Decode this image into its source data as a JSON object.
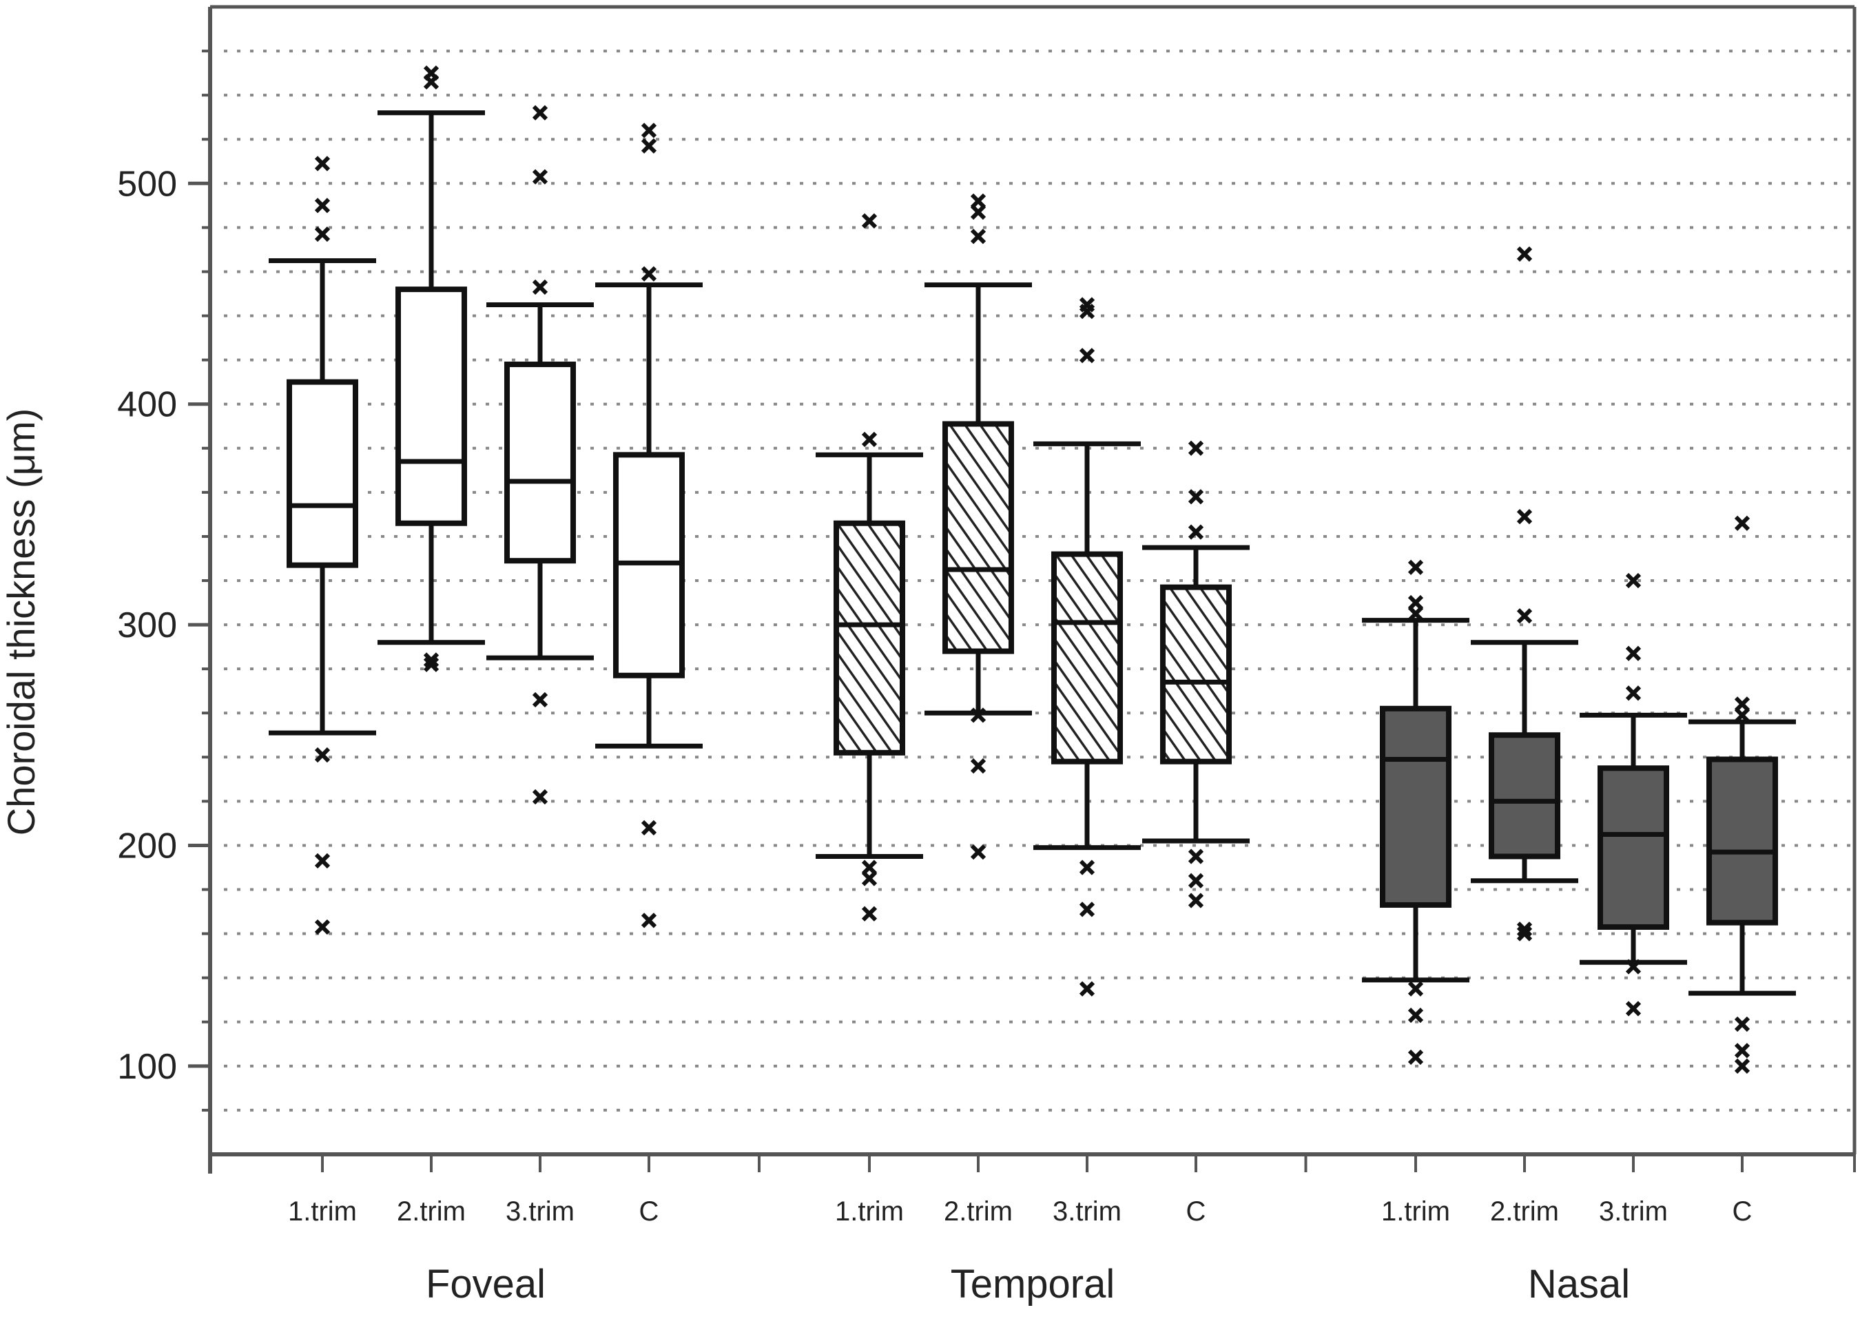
{
  "chart_data": {
    "type": "boxplot",
    "title": "",
    "ylabel": "Choroidal thickness (μm)",
    "xlabel": "",
    "ylim": [
      60,
      580
    ],
    "yticks": [
      100,
      200,
      300,
      400,
      500
    ],
    "yminor_step": 20,
    "grid": "horizontal-dotted",
    "groups": [
      {
        "name": "Foveal",
        "fill": "white",
        "boxes": [
          {
            "category": "1.trim",
            "whisker_low": 251,
            "q1": 327,
            "median": 354,
            "q3": 410,
            "whisker_high": 465,
            "outliers": [
              509,
              490,
              477,
              241,
              193,
              163
            ]
          },
          {
            "category": "2.trim",
            "whisker_low": 292,
            "q1": 346,
            "median": 374,
            "q3": 452,
            "whisker_high": 532,
            "outliers": [
              550,
              546,
              284,
              282
            ]
          },
          {
            "category": "3.trim",
            "whisker_low": 285,
            "q1": 329,
            "median": 365,
            "q3": 418,
            "whisker_high": 445,
            "outliers": [
              532,
              503,
              453,
              266,
              222
            ]
          },
          {
            "category": "C",
            "whisker_low": 245,
            "q1": 277,
            "median": 328,
            "q3": 377,
            "whisker_high": 454,
            "outliers": [
              524,
              517,
              459,
              208,
              166
            ]
          }
        ]
      },
      {
        "name": "Temporal",
        "fill": "hatched",
        "boxes": [
          {
            "category": "1.trim",
            "whisker_low": 195,
            "q1": 242,
            "median": 300,
            "q3": 346,
            "whisker_high": 377,
            "outliers": [
              483,
              384,
              190,
              185,
              169
            ]
          },
          {
            "category": "2.trim",
            "whisker_low": 260,
            "q1": 288,
            "median": 325,
            "q3": 391,
            "whisker_high": 454,
            "outliers": [
              492,
              487,
              476,
              259,
              236,
              197
            ]
          },
          {
            "category": "3.trim",
            "whisker_low": 199,
            "q1": 238,
            "median": 301,
            "q3": 332,
            "whisker_high": 382,
            "outliers": [
              445,
              442,
              422,
              190,
              171,
              135
            ]
          },
          {
            "category": "C",
            "whisker_low": 202,
            "q1": 238,
            "median": 274,
            "q3": 317,
            "whisker_high": 335,
            "outliers": [
              380,
              358,
              342,
              195,
              184,
              175
            ]
          }
        ]
      },
      {
        "name": "Nasal",
        "fill": "dark-gray",
        "boxes": [
          {
            "category": "1.trim",
            "whisker_low": 139,
            "q1": 173,
            "median": 239,
            "q3": 262,
            "whisker_high": 302,
            "outliers": [
              326,
              310,
              305,
              135,
              123,
              104
            ]
          },
          {
            "category": "2.trim",
            "whisker_low": 184,
            "q1": 195,
            "median": 220,
            "q3": 250,
            "whisker_high": 292,
            "outliers": [
              468,
              349,
              304,
              162,
              160
            ]
          },
          {
            "category": "3.trim",
            "whisker_low": 147,
            "q1": 163,
            "median": 205,
            "q3": 235,
            "whisker_high": 259,
            "outliers": [
              320,
              287,
              269,
              145,
              126
            ]
          },
          {
            "category": "C",
            "whisker_low": 133,
            "q1": 165,
            "median": 197,
            "q3": 239,
            "whisker_high": 256,
            "outliers": [
              346,
              264,
              259,
              119,
              107,
              100
            ]
          }
        ]
      }
    ],
    "colors": {
      "axis": "#555555",
      "grid": "#888888",
      "box_stroke": "#111111",
      "white_fill": "#ffffff",
      "hatch_fill": "#ffffff",
      "dark_fill": "#5a5a5a",
      "outlier": "#111111"
    }
  }
}
